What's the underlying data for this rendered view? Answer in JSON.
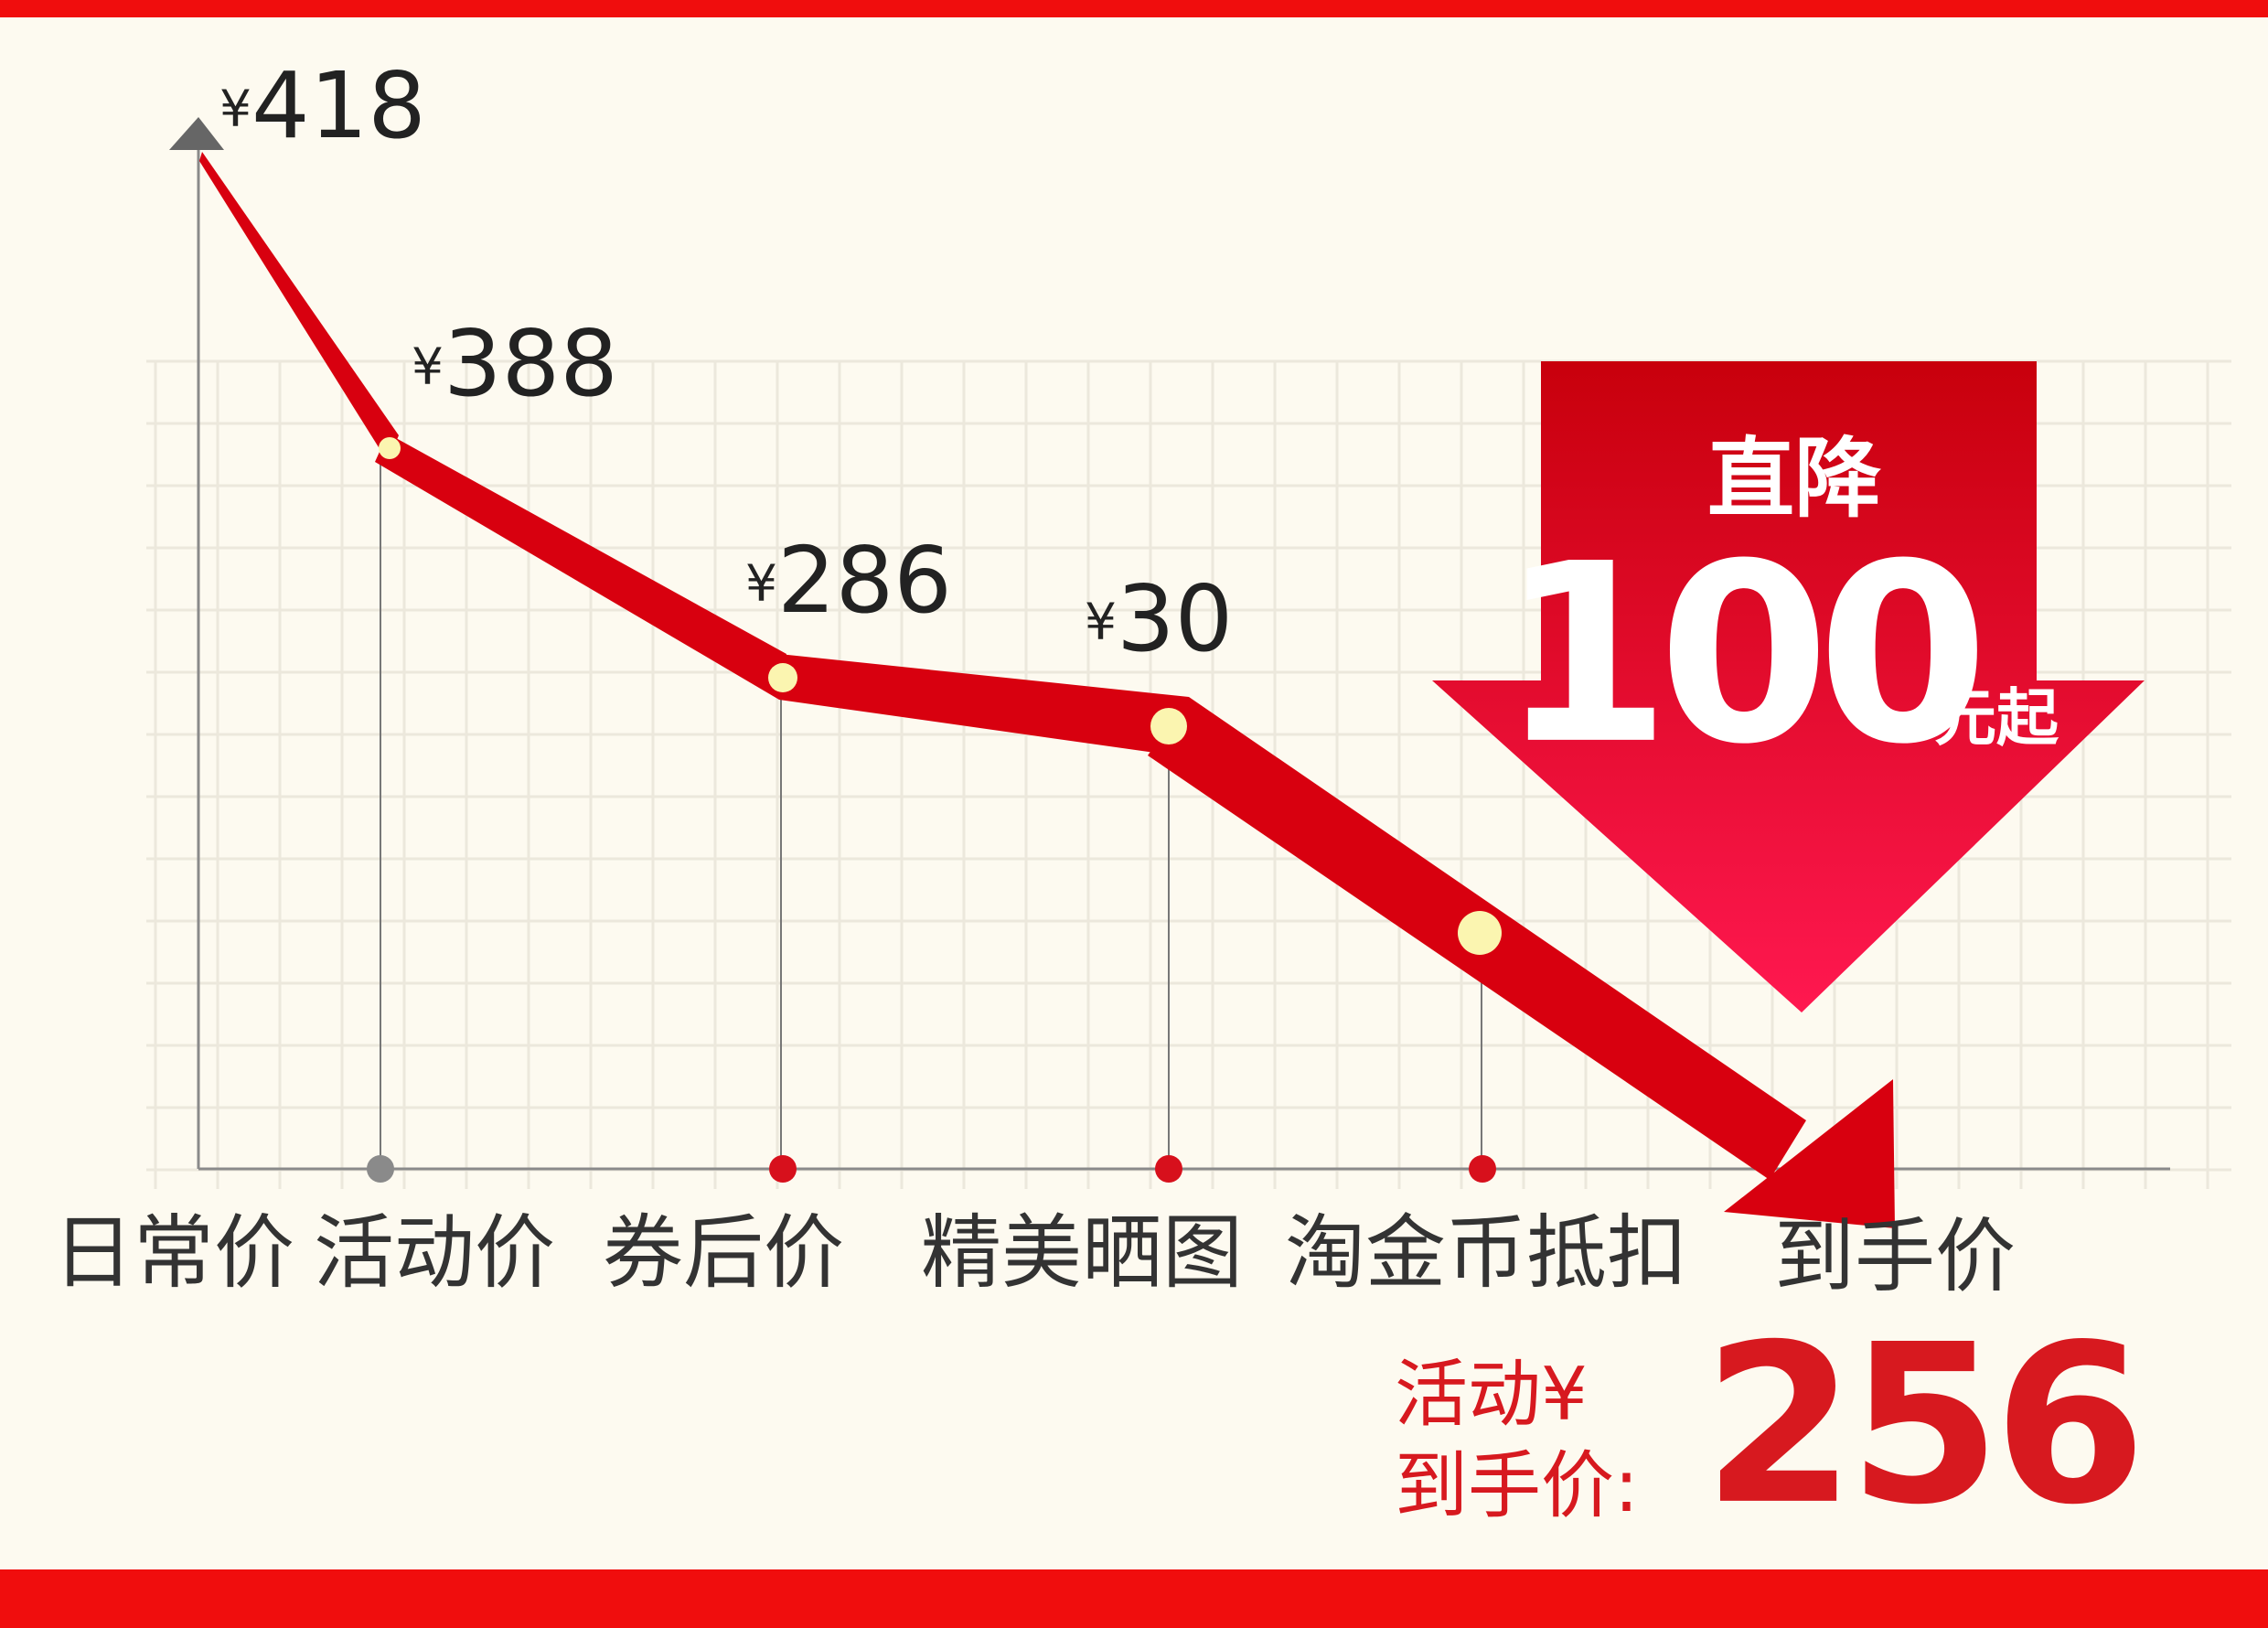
{
  "prices": [
    {
      "currency": "¥",
      "amount": "418"
    },
    {
      "currency": "¥",
      "amount": "388"
    },
    {
      "currency": "¥",
      "amount": "286"
    },
    {
      "currency": "¥",
      "amount": "30"
    }
  ],
  "steps": [
    "日常价",
    "活动价",
    "券后价",
    "精美晒图",
    "淘金币抵扣",
    "到手价"
  ],
  "badge": {
    "title": "直降",
    "amount": "100",
    "suffix": "元起"
  },
  "final": {
    "line1": "活动¥",
    "line2": "到手价:",
    "amount": "256"
  }
}
